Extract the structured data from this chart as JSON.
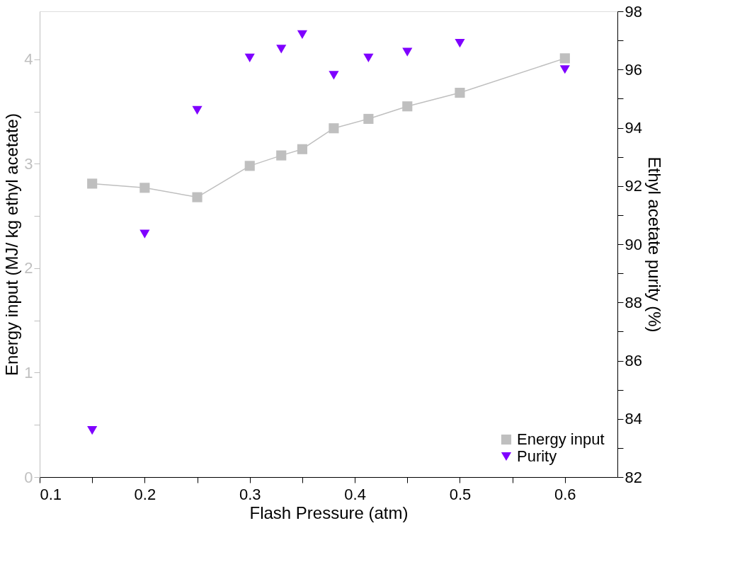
{
  "chart_data": {
    "type": "line",
    "xlabel": "Flash Pressure (atm)",
    "ylabel": "Energy input (MJ/ kg ethyl acetate)",
    "y2label": "Ethyl acetate purity (%)",
    "xlim": [
      0.1,
      0.65
    ],
    "xticks": [
      0.1,
      {
        "value": 0.15,
        "label": null
      },
      0.2,
      {
        "value": 0.25,
        "label": null
      },
      0.3,
      {
        "value": 0.35,
        "label": null
      },
      0.4,
      {
        "value": 0.45,
        "label": null
      },
      0.5,
      {
        "value": 0.55,
        "label": null
      },
      0.6
    ],
    "ylim": [
      0,
      4.46
    ],
    "yticks": [
      0,
      {
        "value": 0.5,
        "label": null
      },
      1,
      {
        "value": 1.5,
        "label": null
      },
      2,
      {
        "value": 2.5,
        "label": null
      },
      3,
      {
        "value": 3.5,
        "label": null
      },
      4
    ],
    "y2lim": [
      82,
      98
    ],
    "y2ticks": [
      82,
      {
        "value": 83,
        "label": null
      },
      84,
      {
        "value": 85,
        "label": null
      },
      86,
      {
        "value": 87,
        "label": null
      },
      88,
      {
        "value": 89,
        "label": null
      },
      90,
      {
        "value": 91,
        "label": null
      },
      92,
      {
        "value": 93,
        "label": null
      },
      94,
      {
        "value": 95,
        "label": null
      },
      96,
      {
        "value": 97,
        "label": null
      },
      98
    ],
    "x": [
      0.15,
      0.2,
      0.25,
      0.3,
      0.33,
      0.35,
      0.38,
      0.413,
      0.45,
      0.5,
      0.6
    ],
    "series": [
      {
        "name": "Energy input",
        "color": "#bfbfbf",
        "type": "line",
        "marker": "square",
        "values": [
          2.81,
          2.77,
          2.68,
          2.98,
          3.08,
          3.14,
          3.34,
          3.43,
          3.55,
          3.68,
          4.01
        ]
      },
      {
        "name": "Purity",
        "color": "#7f00ff",
        "type": "scatter",
        "marker": "triangle",
        "axis": "y2",
        "values": [
          83.6,
          90.35,
          94.6,
          96.4,
          96.7,
          97.2,
          95.8,
          96.4,
          96.6,
          96.9,
          96.0
        ]
      }
    ],
    "legend": "bottom right",
    "grid": false
  }
}
